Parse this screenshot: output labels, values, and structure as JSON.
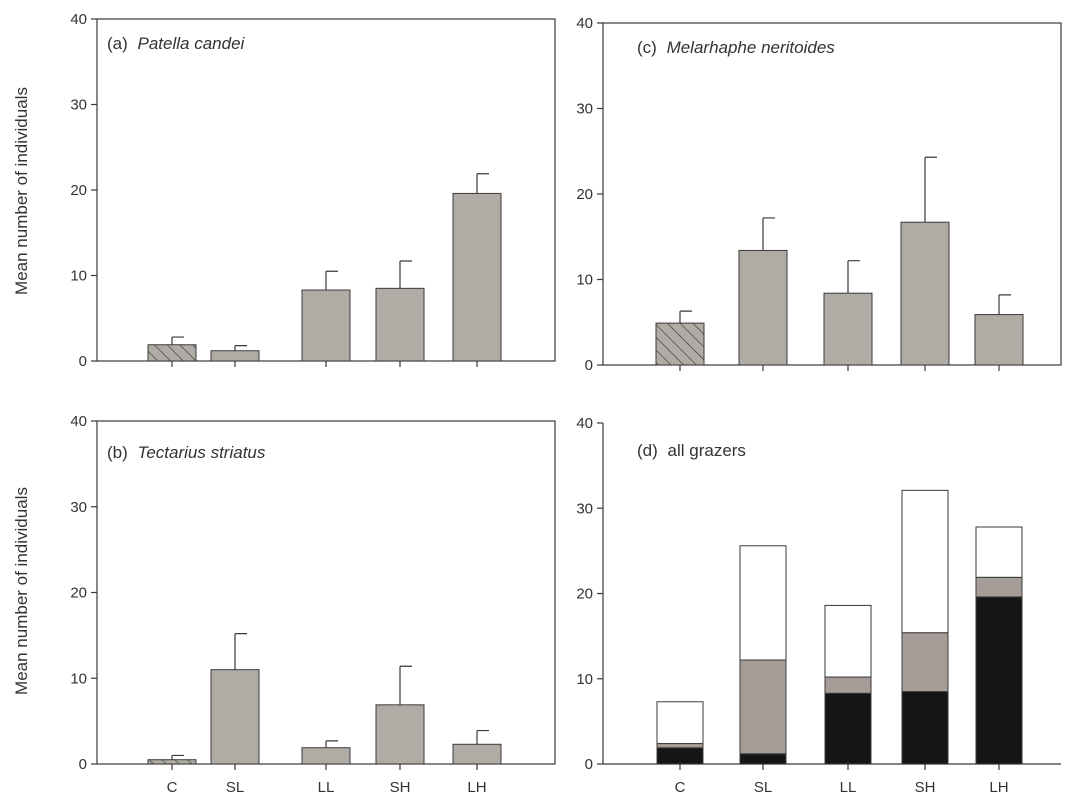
{
  "chart_data": [
    {
      "panel": "a",
      "type": "bar",
      "title_prefix": "(a)",
      "title_species": "Patella candei",
      "ylabel": "Mean number of individuals",
      "categories": [
        "C",
        "SL",
        "LL",
        "SH",
        "LH"
      ],
      "values": [
        1.9,
        1.2,
        8.3,
        8.5,
        19.6
      ],
      "errors": [
        0.9,
        0.6,
        2.2,
        3.2,
        2.3
      ],
      "ylim": [
        0,
        40
      ],
      "yticks": [
        "0",
        "10",
        "20",
        "30",
        "40"
      ],
      "show_xticklabels": false,
      "colors": {
        "fill": "#b1aba6",
        "control_pattern": "hatched"
      }
    },
    {
      "panel": "b",
      "type": "bar",
      "title_prefix": "(b)",
      "title_species": "Tectarius striatus",
      "ylabel": "Mean number of individuals",
      "categories": [
        "C",
        "SL",
        "LL",
        "SH",
        "LH"
      ],
      "values": [
        0.5,
        11.0,
        1.9,
        6.9,
        2.3
      ],
      "errors": [
        0.5,
        4.2,
        0.8,
        4.5,
        1.6
      ],
      "ylim": [
        0,
        40
      ],
      "yticks": [
        "0",
        "10",
        "20",
        "30",
        "40"
      ],
      "show_xticklabels": true,
      "colors": {
        "fill": "#b1aba6",
        "control_pattern": "hatched"
      }
    },
    {
      "panel": "c",
      "type": "bar",
      "title_prefix": "(c)",
      "title_species": "Melarhaphe neritoides",
      "ylabel": "",
      "categories": [
        "C",
        "SL",
        "LL",
        "SH",
        "LH"
      ],
      "values": [
        4.9,
        13.4,
        8.4,
        16.7,
        5.9
      ],
      "errors": [
        1.4,
        3.8,
        3.8,
        7.6,
        2.3
      ],
      "ylim": [
        0,
        40
      ],
      "yticks": [
        "0",
        "10",
        "20",
        "30",
        "40"
      ],
      "show_xticklabels": false,
      "colors": {
        "fill": "#b1aba6",
        "control_pattern": "hatched"
      }
    },
    {
      "panel": "d",
      "type": "bar",
      "stacked": true,
      "title_prefix": "(d)",
      "title_species": "all grazers",
      "ylabel": "",
      "categories": [
        "C",
        "SL",
        "LL",
        "SH",
        "LH"
      ],
      "series": [
        {
          "values": [
            1.9,
            1.2,
            8.3,
            8.5,
            19.6
          ],
          "color": "#151515"
        },
        {
          "values": [
            0.5,
            11.0,
            1.9,
            6.9,
            2.3
          ],
          "color": "#a79d98"
        },
        {
          "values": [
            4.9,
            13.4,
            8.4,
            16.7,
            5.9
          ],
          "color": "#ffffff"
        }
      ],
      "ylim": [
        0,
        40
      ],
      "yticks": [
        "0",
        "10",
        "20",
        "30",
        "40"
      ],
      "show_xticklabels": true
    }
  ]
}
